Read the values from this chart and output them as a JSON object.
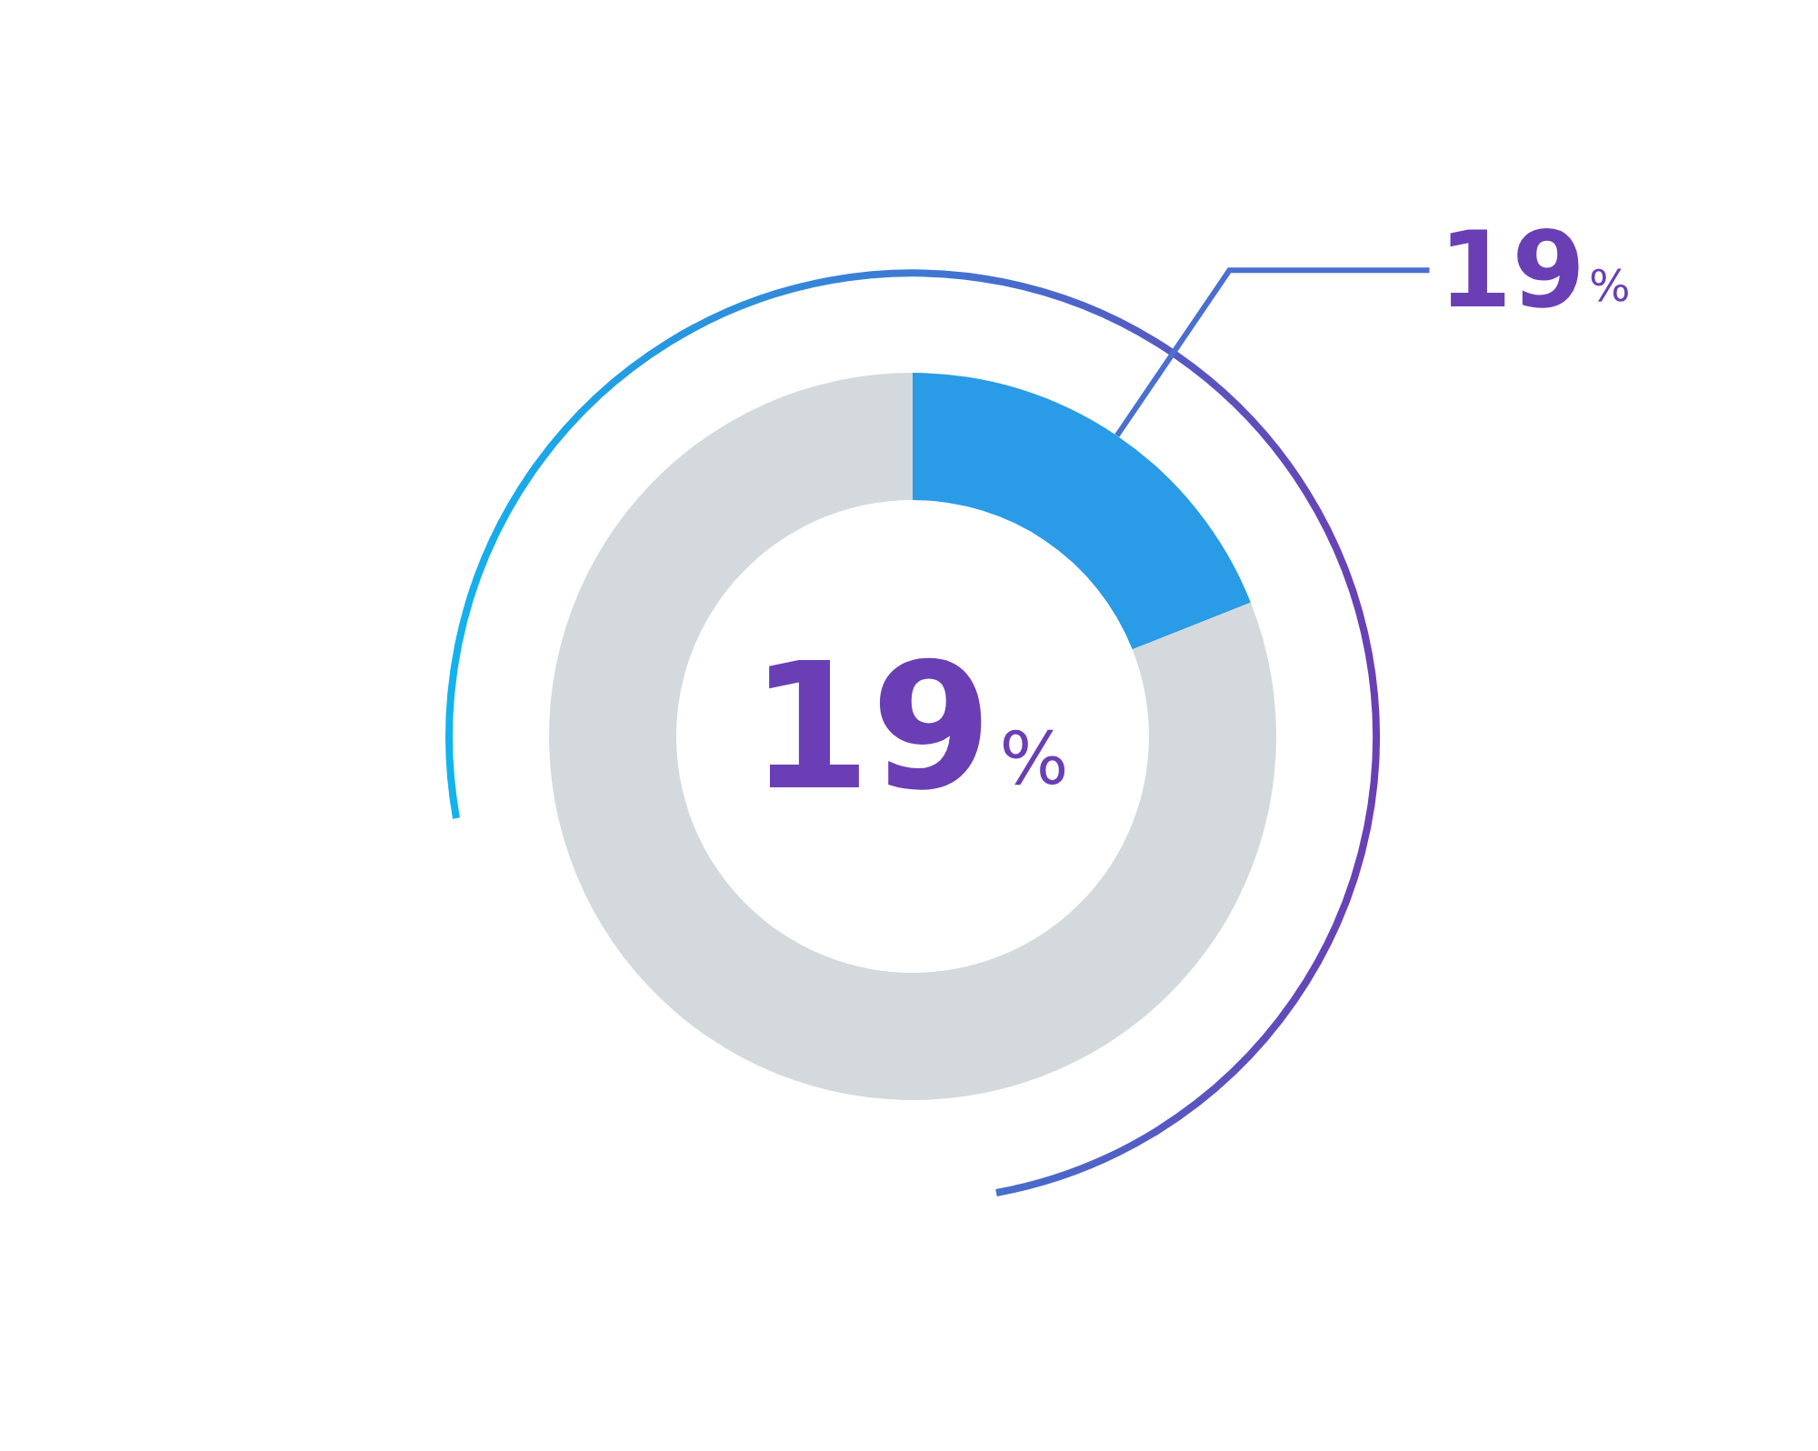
{
  "chart_data": {
    "type": "donut",
    "categories": [
      null,
      null
    ],
    "values": [
      19,
      81
    ],
    "colors": [
      "#2a9be6",
      "#d3d9dc"
    ],
    "value_labels": [
      "19%",
      null
    ],
    "annotations": [
      "19%"
    ]
  }
}
